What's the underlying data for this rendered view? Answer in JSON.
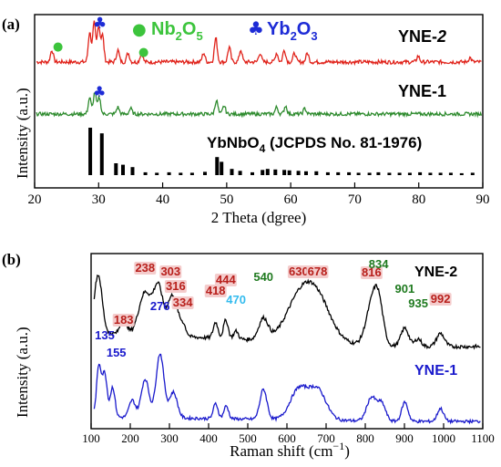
{
  "colors": {
    "ynE2_xrd": "#e0221a",
    "ynE1_xrd": "#2e8b2e",
    "ref_bars": "#000000",
    "nb_marker": "#3cc43c",
    "yb_marker": "#1d2bd6",
    "ynE2_raman": "#000000",
    "ynE1_raman": "#1a1acc",
    "peak_red": "#b8201c",
    "peak_green": "#1f7a1f",
    "peak_blue": "#1a1acc",
    "peak_cyan": "#33bbee",
    "peak_highlight": "#f4cccc"
  },
  "panel_a": {
    "panel_label": "(a)",
    "ylabel": "Intensity (a.u.)",
    "xlabel": "2 Theta (dgree)",
    "legend_nb_marker": "●",
    "legend_nb_text": "Nb",
    "legend_nb_sub1": "2",
    "legend_nb_text2": "O",
    "legend_nb_sub2": "5",
    "legend_yb_marker": "♣",
    "legend_yb_text": "Yb",
    "legend_yb_sub1": "2",
    "legend_yb_text2": "O",
    "legend_yb_sub2": "3",
    "label_yne2_prefix": "YNE-",
    "label_yne2_suffix": "2",
    "label_yne1": "YNE-1",
    "label_ref_a": "YbNbO",
    "label_ref_sub": "4",
    "label_ref_b": " (JCPDS No. 81-1976)",
    "marker_yb": "♣",
    "marker_nb": "●"
  },
  "panel_b": {
    "panel_label": "(b)",
    "ylabel": "Intensity (a.u.)",
    "xlabel_main": "Raman shift (cm",
    "xlabel_sup": "−1",
    "xlabel_end": ")",
    "label_yne2": "YNE-2",
    "label_yne1": "YNE-1"
  },
  "chart_data": [
    {
      "type": "line",
      "title": "",
      "xlabel": "2 Theta (dgree)",
      "ylabel": "Intensity (a.u.)",
      "xlim": [
        20,
        90
      ],
      "xticks": [
        20,
        30,
        40,
        50,
        60,
        70,
        80,
        90
      ],
      "grid": false,
      "series": [
        {
          "name": "YNE-2",
          "peaks": [
            {
              "x": 22.7,
              "h": 4
            },
            {
              "x": 28.6,
              "h": 10
            },
            {
              "x": 29.3,
              "h": 13
            },
            {
              "x": 30.0,
              "h": 12
            },
            {
              "x": 30.6,
              "h": 9
            },
            {
              "x": 33.0,
              "h": 4
            },
            {
              "x": 34.6,
              "h": 3
            },
            {
              "x": 36.7,
              "h": 3
            },
            {
              "x": 46.4,
              "h": 3
            },
            {
              "x": 48.3,
              "h": 8
            },
            {
              "x": 50.4,
              "h": 5
            },
            {
              "x": 52.2,
              "h": 4
            },
            {
              "x": 55.2,
              "h": 3
            },
            {
              "x": 57.8,
              "h": 3
            },
            {
              "x": 59.0,
              "h": 4
            },
            {
              "x": 60.6,
              "h": 3
            },
            {
              "x": 62.6,
              "h": 3
            },
            {
              "x": 79.9,
              "h": 2
            },
            {
              "x": 88.0,
              "h": 1.5
            }
          ]
        },
        {
          "name": "YNE-1",
          "peaks": [
            {
              "x": 28.6,
              "h": 6
            },
            {
              "x": 29.4,
              "h": 8
            },
            {
              "x": 30.1,
              "h": 6
            },
            {
              "x": 33.0,
              "h": 2.5
            },
            {
              "x": 35.0,
              "h": 2
            },
            {
              "x": 48.4,
              "h": 5
            },
            {
              "x": 49.6,
              "h": 3
            },
            {
              "x": 57.8,
              "h": 2.5
            },
            {
              "x": 59.2,
              "h": 3
            },
            {
              "x": 62.2,
              "h": 2
            }
          ]
        },
        {
          "name": "YbNbO4 (JCPDS No. 81-1976)",
          "type": "bar",
          "x": [
            28.7,
            30.5,
            32.7,
            33.8,
            35.3,
            37.3,
            39.1,
            41.0,
            42.8,
            44.6,
            46.6,
            48.5,
            49.2,
            50.8,
            52.1,
            54.0,
            55.6,
            56.4,
            57.6,
            59.0,
            59.8,
            61.2,
            62.4,
            64.0,
            65.8,
            67.4,
            69.1,
            70.6,
            72.3,
            73.7,
            75.4,
            77.0,
            78.6,
            80.2,
            81.8,
            83.4,
            85.0,
            86.7,
            88.4
          ],
          "values": [
            100,
            88,
            25,
            22,
            17,
            6,
            5,
            6,
            5,
            5,
            7,
            38,
            28,
            13,
            9,
            6,
            11,
            13,
            12,
            11,
            10,
            9,
            8,
            8,
            6,
            6,
            6,
            5,
            5,
            6,
            5,
            5,
            5,
            6,
            5,
            5,
            5,
            4,
            5
          ]
        }
      ],
      "annotations": [
        {
          "text": "♣",
          "series": "YNE-2",
          "x": 29.5
        },
        {
          "text": "●",
          "series": "YNE-2",
          "x": 22.7
        },
        {
          "text": "●",
          "series": "YNE-2",
          "x": 36.7
        },
        {
          "text": "♣",
          "series": "YNE-1",
          "x": 29.5
        }
      ]
    },
    {
      "type": "line",
      "title": "",
      "xlabel": "Raman shift (cm−1)",
      "ylabel": "Intensity (a.u.)",
      "xlim": [
        100,
        1100
      ],
      "xticks": [
        100,
        200,
        300,
        400,
        500,
        600,
        700,
        800,
        900,
        1000,
        1100
      ],
      "grid": false,
      "series": [
        {
          "name": "YNE-2",
          "peaks": [
            {
              "x": 118,
              "h": 11,
              "w": 10
            },
            {
              "x": 183,
              "h": 3,
              "w": 8
            },
            {
              "x": 238,
              "h": 8,
              "w": 16
            },
            {
              "x": 272,
              "h": 9,
              "w": 12
            },
            {
              "x": 303,
              "h": 6,
              "w": 10
            },
            {
              "x": 316,
              "h": 4,
              "w": 8
            },
            {
              "x": 334,
              "h": 2.5,
              "w": 8
            },
            {
              "x": 418,
              "h": 3,
              "w": 6
            },
            {
              "x": 444,
              "h": 3.5,
              "w": 6
            },
            {
              "x": 470,
              "h": 1.5,
              "w": 6
            },
            {
              "x": 540,
              "h": 4,
              "w": 12
            },
            {
              "x": 630,
              "h": 7,
              "w": 35
            },
            {
              "x": 678,
              "h": 7.5,
              "w": 35
            },
            {
              "x": 816,
              "h": 7,
              "w": 15
            },
            {
              "x": 834,
              "h": 7,
              "w": 12
            },
            {
              "x": 901,
              "h": 3.5,
              "w": 10
            },
            {
              "x": 935,
              "h": 1.5,
              "w": 8
            },
            {
              "x": 992,
              "h": 2.5,
              "w": 10
            }
          ]
        },
        {
          "name": "YNE-1",
          "peaks": [
            {
              "x": 120,
              "h": 12,
              "w": 6
            },
            {
              "x": 135,
              "h": 10,
              "w": 6
            },
            {
              "x": 155,
              "h": 7,
              "w": 6
            },
            {
              "x": 205,
              "h": 4,
              "w": 8
            },
            {
              "x": 238,
              "h": 9,
              "w": 10
            },
            {
              "x": 276,
              "h": 15,
              "w": 10
            },
            {
              "x": 310,
              "h": 6,
              "w": 10
            },
            {
              "x": 418,
              "h": 3.5,
              "w": 6
            },
            {
              "x": 445,
              "h": 3,
              "w": 6
            },
            {
              "x": 540,
              "h": 7,
              "w": 9
            },
            {
              "x": 630,
              "h": 7,
              "w": 22
            },
            {
              "x": 678,
              "h": 7,
              "w": 22
            },
            {
              "x": 816,
              "h": 5.5,
              "w": 12
            },
            {
              "x": 842,
              "h": 4,
              "w": 10
            },
            {
              "x": 901,
              "h": 4.5,
              "w": 8
            },
            {
              "x": 992,
              "h": 3,
              "w": 8
            }
          ]
        }
      ],
      "annotations": [
        {
          "text": "183",
          "x": 183,
          "series": "YNE-2",
          "color": "red"
        },
        {
          "text": "238",
          "x": 238,
          "series": "YNE-2",
          "color": "red"
        },
        {
          "text": "303",
          "x": 303,
          "series": "YNE-2",
          "color": "red"
        },
        {
          "text": "316",
          "x": 316,
          "series": "YNE-2",
          "color": "red"
        },
        {
          "text": "334",
          "x": 334,
          "series": "YNE-2",
          "color": "red"
        },
        {
          "text": "418",
          "x": 418,
          "series": "YNE-2",
          "color": "red"
        },
        {
          "text": "444",
          "x": 444,
          "series": "YNE-2",
          "color": "red"
        },
        {
          "text": "470",
          "x": 470,
          "series": "YNE-2",
          "color": "cyan"
        },
        {
          "text": "540",
          "x": 540,
          "series": "YNE-2",
          "color": "green"
        },
        {
          "text": "630",
          "x": 630,
          "series": "YNE-2",
          "color": "red"
        },
        {
          "text": "678",
          "x": 678,
          "series": "YNE-2",
          "color": "red"
        },
        {
          "text": "816",
          "x": 816,
          "series": "YNE-2",
          "color": "red"
        },
        {
          "text": "834",
          "x": 834,
          "series": "YNE-2",
          "color": "green"
        },
        {
          "text": "901",
          "x": 901,
          "series": "YNE-2",
          "color": "green"
        },
        {
          "text": "935",
          "x": 935,
          "series": "YNE-2",
          "color": "green"
        },
        {
          "text": "992",
          "x": 992,
          "series": "YNE-2",
          "color": "red"
        },
        {
          "text": "135",
          "x": 135,
          "series": "YNE-1",
          "color": "blue"
        },
        {
          "text": "155",
          "x": 155,
          "series": "YNE-1",
          "color": "blue"
        },
        {
          "text": "276",
          "x": 276,
          "series": "YNE-1",
          "color": "blue"
        }
      ]
    }
  ]
}
